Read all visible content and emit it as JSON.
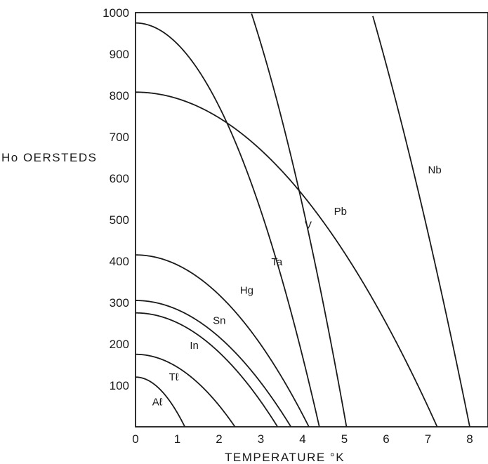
{
  "chart_data": {
    "type": "line",
    "title": "",
    "xlabel": "TEMPERATURE °K",
    "ylabel": "Ho OERSTEDS",
    "xlim": [
      0,
      8.5
    ],
    "ylim": [
      0,
      1000
    ],
    "x_ticks": [
      "0",
      "1",
      "2",
      "3",
      "4",
      "5",
      "6",
      "7",
      "8"
    ],
    "y_ticks": [
      "100",
      "200",
      "300",
      "400",
      "500",
      "600",
      "700",
      "800",
      "900",
      "1000"
    ],
    "grid": false,
    "series": [
      {
        "name": "Aℓ",
        "Hc0": 120,
        "Tc": 1.18
      },
      {
        "name": "Tℓ",
        "Hc0": 175,
        "Tc": 2.38
      },
      {
        "name": "In",
        "Hc0": 275,
        "Tc": 3.4
      },
      {
        "name": "Sn",
        "Hc0": 305,
        "Tc": 3.72
      },
      {
        "name": "Hg",
        "Hc0": 415,
        "Tc": 4.15
      },
      {
        "name": "Ta",
        "Hc0": 975,
        "Tc": 4.4
      },
      {
        "name": "V",
        "Hc0": 1430,
        "Tc": 5.05
      },
      {
        "name": "Pb",
        "Hc0": 808,
        "Tc": 7.22
      },
      {
        "name": "Nb",
        "Hc0": 2000,
        "Tc": 8.0
      }
    ]
  }
}
